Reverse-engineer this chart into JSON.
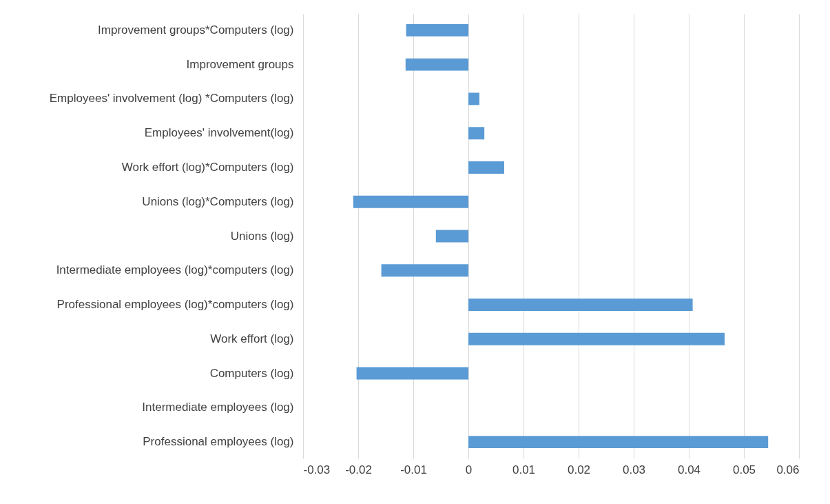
{
  "chart_data": {
    "type": "bar",
    "orientation": "horizontal",
    "categories": [
      "Improvement groups*Computers (log)",
      "Improvement groups",
      "Employees' involvement (log) *Computers (log)",
      "Employees' involvement(log)",
      "Work effort (log)*Computers (log)",
      "Unions (log)*Computers (log)",
      "Unions (log)",
      "Intermediate employees (log)*computers (log)",
      "Professional employees (log)*computers (log)",
      "Work effort (log)",
      "Computers (log)",
      "Intermediate employees (log)",
      "Professional employees (log)"
    ],
    "values": [
      -0.0113,
      -0.0114,
      0.002,
      0.0029,
      0.0065,
      -0.0209,
      -0.0059,
      -0.0158,
      0.0407,
      0.0465,
      -0.0203,
      0,
      0.0544
    ],
    "color": "#5b9bd5",
    "xlim": [
      -0.03,
      0.06
    ],
    "xticks": [
      -0.03,
      -0.02,
      -0.01,
      0,
      0.01,
      0.02,
      0.03,
      0.04,
      0.05,
      0.06
    ],
    "grid": "x"
  }
}
